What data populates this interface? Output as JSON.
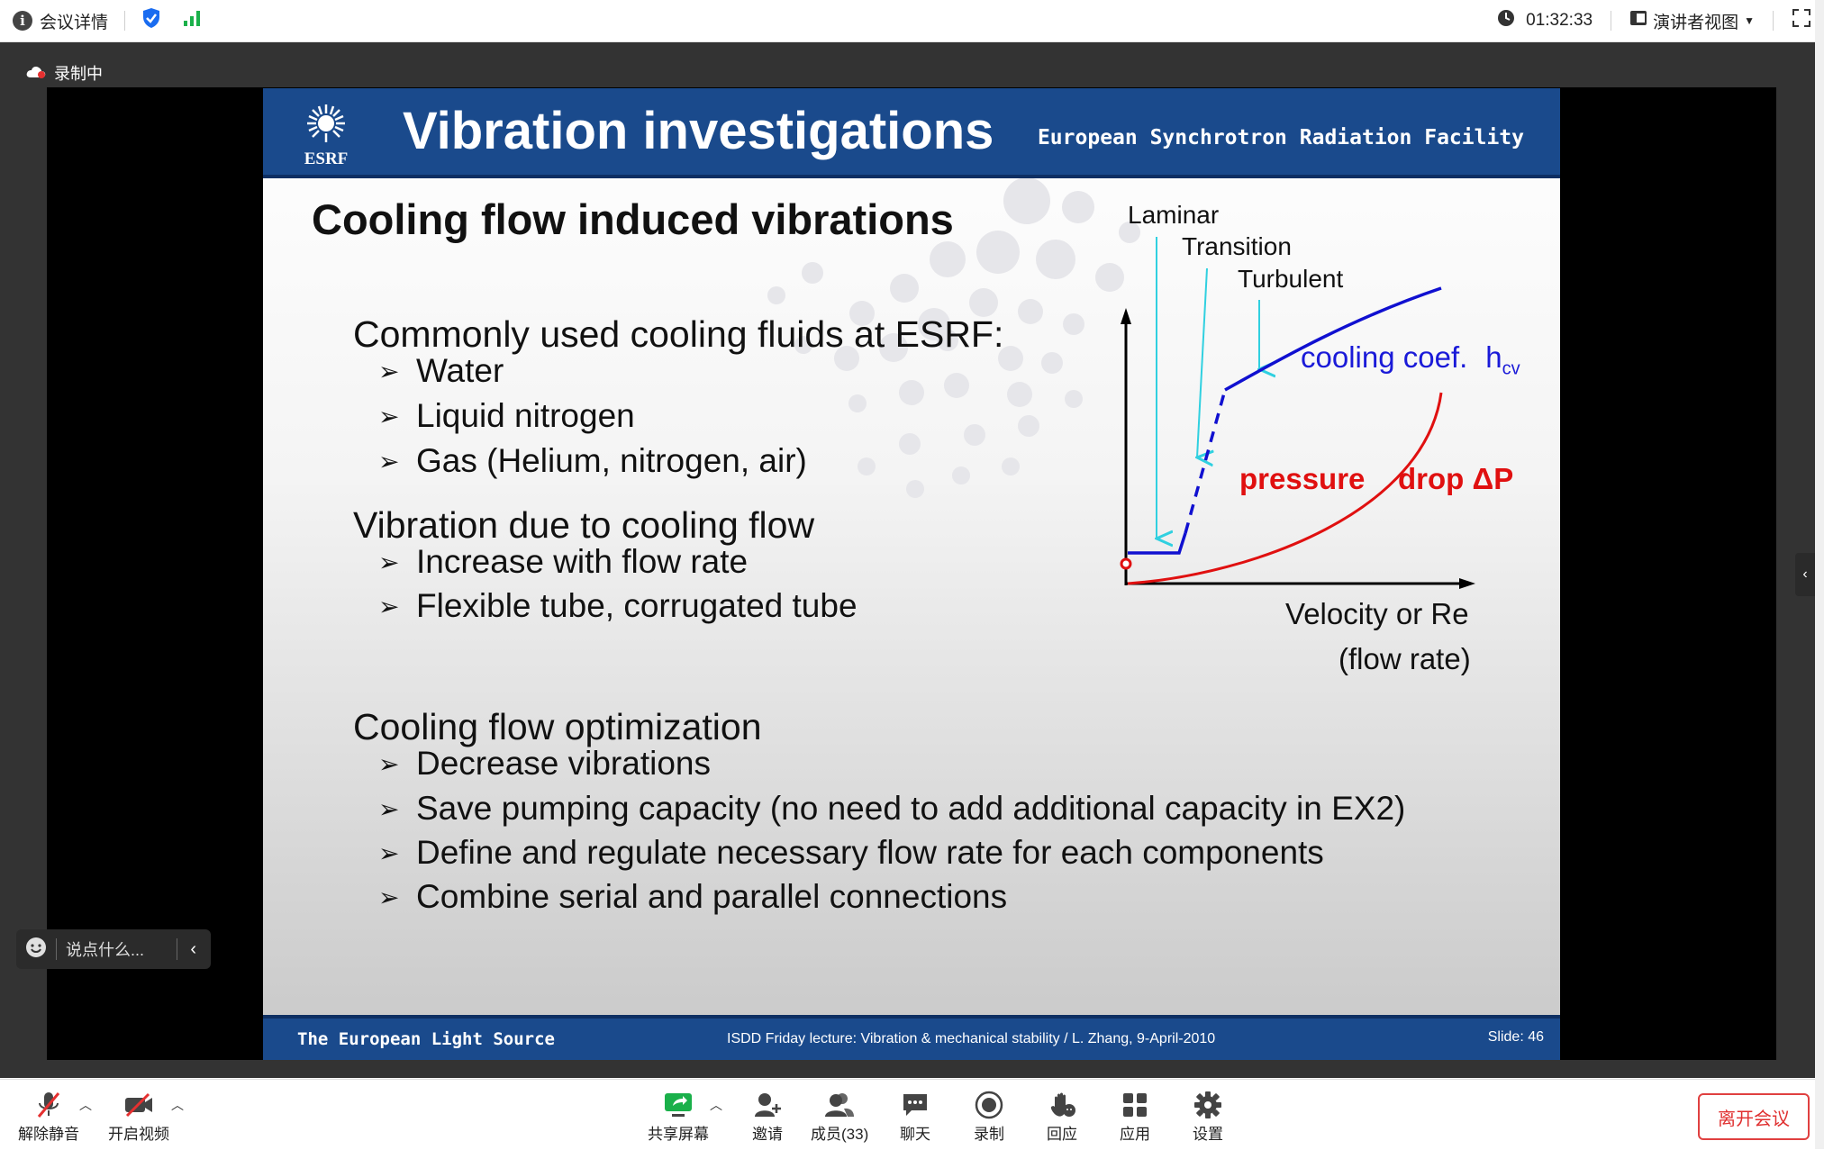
{
  "topbar": {
    "meeting_details": "会议详情",
    "time": "01:32:33",
    "presenter_view": "演讲者视图"
  },
  "recording_status": "录制中",
  "slide": {
    "header_title": "Vibration investigations",
    "logo_text": "ESRF",
    "institution": "European Synchrotron Radiation Facility",
    "subtitle": "Cooling flow induced vibrations",
    "sections": [
      {
        "heading": "Commonly used cooling fluids at ESRF:",
        "bullets": [
          "Water",
          "Liquid nitrogen",
          "Gas (Helium, nitrogen, air)"
        ]
      },
      {
        "heading": "Vibration due to cooling flow",
        "bullets": [
          "Increase with flow rate",
          "Flexible tube, corrugated tube"
        ]
      },
      {
        "heading": "Cooling flow optimization",
        "bullets": [
          "Decrease vibrations",
          "Save pumping capacity (no need to add additional capacity in EX2)",
          "Define and regulate necessary flow rate for each components",
          "Combine serial and parallel connections"
        ]
      }
    ],
    "graph": {
      "regime_laminar": "Laminar",
      "regime_transition": "Transition",
      "regime_turbulent": "Turbulent",
      "cooling_label": "cooling coef.",
      "cooling_symbol": "h",
      "cooling_subscript": "cv",
      "pressure_label_1": "pressure",
      "pressure_label_2": "drop ΔP",
      "x_label_1": "Velocity or Re",
      "x_label_2": "(flow rate)",
      "cooling_color": "#1010d0",
      "pressure_color": "#e01010",
      "arrow_color": "#30d0e0"
    },
    "footer_left": "The European Light Source",
    "footer_mid": "ISDD Friday lecture: Vibration & mechanical stability / L. Zhang,  9-April-2010",
    "footer_right": "Slide: 46"
  },
  "chat_placeholder": "说点什么...",
  "bottombar": {
    "unmute": "解除静音",
    "start_video": "开启视频",
    "share_screen": "共享屏幕",
    "invite": "邀请",
    "members": "成员(33)",
    "chat": "聊天",
    "record": "录制",
    "react": "回应",
    "apps": "应用",
    "settings": "设置",
    "leave": "离开会议"
  }
}
